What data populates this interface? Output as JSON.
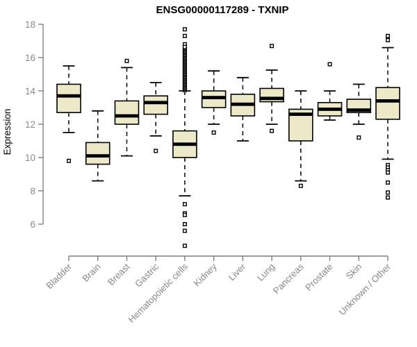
{
  "chart_data": {
    "type": "boxplot",
    "title": "ENSG00000117289 - TXNIP",
    "ylabel": "Expression",
    "xlabel": "",
    "ylim": [
      6,
      18
    ],
    "y_ticks": [
      18,
      16,
      14,
      12,
      10,
      8,
      6
    ],
    "grid": "off",
    "legend": "none",
    "categories": [
      "Bladder",
      "Brain",
      "Breast",
      "Gastric",
      "Hematopoietic cells",
      "Kidney",
      "Liver",
      "Lung",
      "Pancreas",
      "Prostate",
      "Skin",
      "Unknown / Other"
    ],
    "boxes": [
      {
        "category": "Bladder",
        "low": 11.5,
        "q1": 12.7,
        "median": 13.7,
        "q3": 14.4,
        "high": 15.5,
        "outliers": [
          9.8
        ]
      },
      {
        "category": "Brain",
        "low": 8.6,
        "q1": 9.6,
        "median": 10.1,
        "q3": 10.9,
        "high": 12.8,
        "outliers": []
      },
      {
        "category": "Breast",
        "low": 10.1,
        "q1": 12.0,
        "median": 12.5,
        "q3": 13.4,
        "high": 15.4,
        "outliers": [
          15.8
        ]
      },
      {
        "category": "Gastric",
        "low": 11.3,
        "q1": 12.6,
        "median": 13.3,
        "q3": 13.7,
        "high": 14.5,
        "outliers": [
          10.4
        ]
      },
      {
        "category": "Hematopoietic cells",
        "low": 7.7,
        "q1": 10.0,
        "median": 10.8,
        "q3": 11.6,
        "high": 14.0,
        "outliers": [
          17.7,
          17.3,
          16.8,
          14.05,
          14.12,
          14.19,
          14.26,
          14.33,
          14.4,
          14.47,
          14.54,
          14.61,
          14.68,
          14.75,
          14.82,
          14.89,
          14.96,
          15.03,
          15.1,
          15.17,
          15.24,
          15.31,
          15.38,
          15.45,
          15.52,
          15.59,
          15.66,
          15.73,
          15.8,
          15.87,
          15.94,
          16.01,
          16.08,
          16.15,
          16.22,
          16.29,
          16.36,
          16.43,
          16.5,
          16.57,
          16.64,
          7.2,
          6.65,
          6.55,
          6.0,
          5.6,
          4.7
        ]
      },
      {
        "category": "Kidney",
        "low": 12.0,
        "q1": 13.0,
        "median": 13.6,
        "q3": 14.0,
        "high": 15.2,
        "outliers": [
          11.5
        ]
      },
      {
        "category": "Liver",
        "low": 11.0,
        "q1": 12.5,
        "median": 13.2,
        "q3": 13.8,
        "high": 14.8,
        "outliers": []
      },
      {
        "category": "Lung",
        "low": 12.0,
        "q1": 13.35,
        "median": 13.55,
        "q3": 14.15,
        "high": 15.25,
        "outliers": [
          16.7,
          11.6
        ]
      },
      {
        "category": "Pancreas",
        "low": 8.6,
        "q1": 11.0,
        "median": 12.6,
        "q3": 12.9,
        "high": 14.0,
        "outliers": [
          8.3
        ]
      },
      {
        "category": "Prostate",
        "low": 12.25,
        "q1": 12.5,
        "median": 12.9,
        "q3": 13.3,
        "high": 14.0,
        "outliers": [
          15.6
        ]
      },
      {
        "category": "Skin",
        "low": 12.0,
        "q1": 12.7,
        "median": 12.85,
        "q3": 13.5,
        "high": 14.4,
        "outliers": [
          11.2
        ]
      },
      {
        "category": "Unknown / Other",
        "low": 9.9,
        "q1": 12.3,
        "median": 13.4,
        "q3": 14.2,
        "high": 16.6,
        "outliers": [
          17.3,
          17.05,
          9.55,
          9.4,
          9.25,
          9.1,
          8.5,
          7.9,
          7.6
        ]
      }
    ],
    "colors": {
      "box_fill": "#EDE8C7",
      "box_stroke": "#000000",
      "median": "#000000",
      "axis_line": "#7f7f7f",
      "tick_label": "#8a8a8a",
      "title": "#000000",
      "background": "#ffffff"
    }
  }
}
